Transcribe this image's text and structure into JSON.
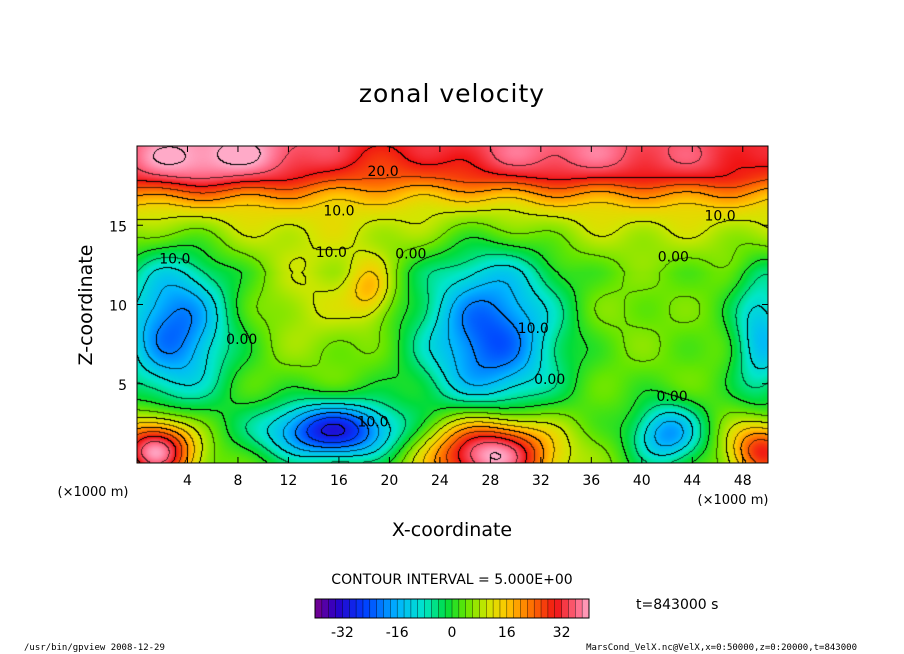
{
  "chart_data": {
    "type": "heatmap",
    "title": "zonal velocity",
    "xlabel": "X-coordinate",
    "ylabel": "Z-coordinate",
    "x_unit_label": "(×1000 m)",
    "y_unit_label": "(×1000 m)",
    "x_ticks": [
      4,
      8,
      12,
      16,
      20,
      24,
      28,
      32,
      36,
      40,
      44,
      48
    ],
    "y_ticks": [
      5,
      10,
      15
    ],
    "xlim": [
      0,
      50
    ],
    "ylim": [
      0,
      20
    ],
    "contour_interval_text": "CONTOUR INTERVAL = 5.000E+00",
    "time_text": "t=843000 s",
    "colorbar": {
      "range": [
        -40,
        40
      ],
      "ticks": [
        "-32",
        "-16",
        "0",
        "16",
        "32"
      ],
      "tick_values": [
        -32,
        -16,
        0,
        16,
        32
      ]
    },
    "contour_labels": [
      {
        "text": "20.0",
        "x": 19.5,
        "y": 18.1
      },
      {
        "text": "10.0",
        "x": 16.0,
        "y": 15.6
      },
      {
        "text": "10.0",
        "x": 46.2,
        "y": 15.3
      },
      {
        "text": "10.0",
        "x": 3.0,
        "y": 12.6
      },
      {
        "text": "10.0",
        "x": 15.4,
        "y": 13.0
      },
      {
        "text": "0.00",
        "x": 21.7,
        "y": 12.9
      },
      {
        "text": "0.00",
        "x": 42.5,
        "y": 12.7
      },
      {
        "text": "0.00",
        "x": 8.3,
        "y": 7.5
      },
      {
        "text": "10.0",
        "x": 31.4,
        "y": 8.2
      },
      {
        "text": "0.00",
        "x": 32.7,
        "y": 5.0
      },
      {
        "text": "0.00",
        "x": 42.4,
        "y": 3.9
      },
      {
        "text": "10.0",
        "x": 18.7,
        "y": 2.3
      }
    ],
    "field_centers": [
      {
        "x": 8,
        "y": 19.0,
        "value": 38,
        "sx": 6.0,
        "sy": 1.6
      },
      {
        "x": 33,
        "y": 19.0,
        "value": 36,
        "sx": 7.0,
        "sy": 1.6
      },
      {
        "x": 1.5,
        "y": 18.5,
        "value": 30,
        "sx": 4.0,
        "sy": 1.5
      },
      {
        "x": 46,
        "y": 18.5,
        "value": 30,
        "sx": 4.5,
        "sy": 1.5
      },
      {
        "x": 3,
        "y": 8.5,
        "value": -22,
        "sx": 3.0,
        "sy": 3.3
      },
      {
        "x": 28,
        "y": 8.0,
        "value": -24,
        "sx": 3.8,
        "sy": 3.8
      },
      {
        "x": 49.5,
        "y": 8.0,
        "value": -14,
        "sx": 1.6,
        "sy": 3.0
      },
      {
        "x": 15.5,
        "y": 2.0,
        "value": -30,
        "sx": 3.8,
        "sy": 1.3
      },
      {
        "x": 42,
        "y": 1.8,
        "value": -18,
        "sx": 2.0,
        "sy": 1.4
      },
      {
        "x": 1.5,
        "y": 0.8,
        "value": 40,
        "sx": 2.2,
        "sy": 1.4
      },
      {
        "x": 28,
        "y": 0.6,
        "value": 44,
        "sx": 3.5,
        "sy": 1.7
      },
      {
        "x": 49.5,
        "y": 0.8,
        "value": 30,
        "sx": 1.8,
        "sy": 1.3
      },
      {
        "x": 18.5,
        "y": 10.9,
        "value": 16,
        "sx": 1.3,
        "sy": 1.4
      },
      {
        "x": 14,
        "y": 10.5,
        "value": 10,
        "sx": 3.0,
        "sy": 2.5
      },
      {
        "x": 38,
        "y": 9.5,
        "value": 6,
        "sx": 2.5,
        "sy": 2.0
      }
    ],
    "background_profile": [
      {
        "y": 0,
        "value": 4
      },
      {
        "y": 12,
        "value": 4
      },
      {
        "y": 14,
        "value": 8
      },
      {
        "y": 16,
        "value": 12
      },
      {
        "y": 17,
        "value": 16
      },
      {
        "y": 18,
        "value": 22
      },
      {
        "y": 20,
        "value": 28
      }
    ]
  },
  "footer": {
    "left_text": "/usr/bin/gpview   2008-12-29",
    "right_text": "MarsCond_VelX.nc@VelX,x=0:50000,z=0:20000,t=843000"
  }
}
